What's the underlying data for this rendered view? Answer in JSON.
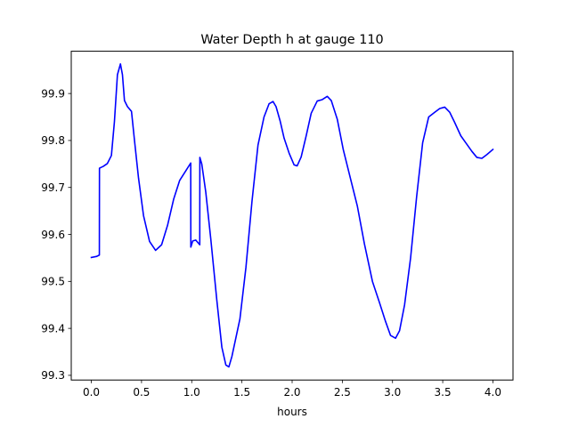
{
  "chart_data": {
    "type": "line",
    "title": "Water Depth h at gauge 110",
    "xlabel": "hours",
    "ylabel": "",
    "xlim": [
      -0.2,
      4.2
    ],
    "ylim": [
      99.29,
      99.99
    ],
    "xticks": [
      0.0,
      0.5,
      1.0,
      1.5,
      2.0,
      2.5,
      3.0,
      3.5,
      4.0
    ],
    "xtick_labels": [
      "0.0",
      "0.5",
      "1.0",
      "1.5",
      "2.0",
      "2.5",
      "3.0",
      "3.5",
      "4.0"
    ],
    "yticks": [
      99.3,
      99.4,
      99.5,
      99.6,
      99.7,
      99.8,
      99.9
    ],
    "ytick_labels": [
      "99.3",
      "99.4",
      "99.5",
      "99.6",
      "99.7",
      "99.8",
      "99.9"
    ],
    "grid": false,
    "series": [
      {
        "name": "",
        "color": "#0000ff",
        "x": [
          0.0,
          0.05,
          0.08,
          0.081,
          0.12,
          0.16,
          0.2,
          0.23,
          0.26,
          0.29,
          0.31,
          0.33,
          0.36,
          0.4,
          0.43,
          0.47,
          0.52,
          0.58,
          0.64,
          0.7,
          0.76,
          0.82,
          0.88,
          0.94,
          0.99,
          0.991,
          1.01,
          1.04,
          1.08,
          1.081,
          1.1,
          1.14,
          1.19,
          1.25,
          1.3,
          1.34,
          1.37,
          1.4,
          1.44,
          1.48,
          1.54,
          1.6,
          1.66,
          1.72,
          1.77,
          1.81,
          1.84,
          1.88,
          1.92,
          1.97,
          2.02,
          2.05,
          2.09,
          2.14,
          2.19,
          2.25,
          2.3,
          2.35,
          2.39,
          2.45,
          2.51,
          2.58,
          2.65,
          2.72,
          2.8,
          2.87,
          2.93,
          2.98,
          3.03,
          3.07,
          3.12,
          3.18,
          3.24,
          3.3,
          3.36,
          3.42,
          3.47,
          3.52,
          3.57,
          3.62,
          3.68,
          3.73,
          3.79,
          3.84,
          3.89,
          3.94,
          4.0
        ],
        "y": [
          99.551,
          99.553,
          99.556,
          99.741,
          99.745,
          99.751,
          99.768,
          99.84,
          99.94,
          99.963,
          99.94,
          99.885,
          99.872,
          99.862,
          99.8,
          99.72,
          99.64,
          99.585,
          99.566,
          99.578,
          99.62,
          99.675,
          99.715,
          99.735,
          99.752,
          99.573,
          99.586,
          99.588,
          99.578,
          99.764,
          99.75,
          99.69,
          99.59,
          99.46,
          99.36,
          99.322,
          99.318,
          99.34,
          99.38,
          99.42,
          99.53,
          99.67,
          99.79,
          99.85,
          99.878,
          99.883,
          99.872,
          99.842,
          99.805,
          99.773,
          99.748,
          99.746,
          99.765,
          99.81,
          99.858,
          99.884,
          99.887,
          99.894,
          99.885,
          99.845,
          99.78,
          99.72,
          99.66,
          99.58,
          99.5,
          99.455,
          99.415,
          99.385,
          99.379,
          99.395,
          99.45,
          99.55,
          99.68,
          99.795,
          99.85,
          99.86,
          99.868,
          99.871,
          99.86,
          99.838,
          99.81,
          99.795,
          99.777,
          99.764,
          99.762,
          99.77,
          99.781
        ]
      }
    ]
  }
}
